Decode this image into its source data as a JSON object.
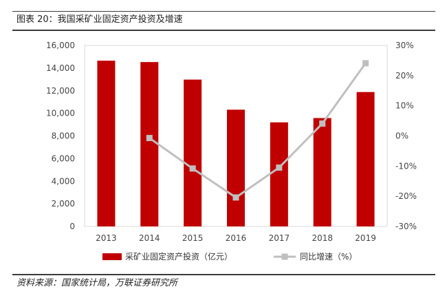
{
  "figure": {
    "title": "图表 20：我国采矿业固定资产投资及增速",
    "source": "资料来源：国家统计局，万联证券研究所"
  },
  "chart_data": {
    "type": "bar",
    "categories": [
      "2013",
      "2014",
      "2015",
      "2016",
      "2017",
      "2018",
      "2019"
    ],
    "series": [
      {
        "name": "采矿业固定资产投资（亿元）",
        "kind": "bar",
        "axis": "left",
        "color": "#c00000",
        "values": [
          14650,
          14530,
          12980,
          10320,
          9200,
          9580,
          11880
        ]
      },
      {
        "name": "同比增速（%）",
        "kind": "line",
        "axis": "right",
        "color": "#bfbfbf",
        "values": [
          null,
          -0.7,
          -10.8,
          -20.4,
          -10.5,
          4.1,
          24.1
        ]
      }
    ],
    "y_left": {
      "min": 0,
      "max": 16000,
      "ticks": [
        0,
        2000,
        4000,
        6000,
        8000,
        10000,
        12000,
        14000,
        16000
      ],
      "tick_labels": [
        "0",
        "2,000",
        "4,000",
        "6,000",
        "8,000",
        "10,000",
        "12,000",
        "14,000",
        "16,000"
      ]
    },
    "y_right": {
      "min": -30,
      "max": 30,
      "ticks": [
        -30,
        -20,
        -10,
        0,
        10,
        20,
        30
      ],
      "tick_labels": [
        "-30%",
        "-20%",
        "-10%",
        "0%",
        "10%",
        "20%",
        "30%"
      ]
    },
    "grid": false,
    "legend_position": "bottom"
  }
}
